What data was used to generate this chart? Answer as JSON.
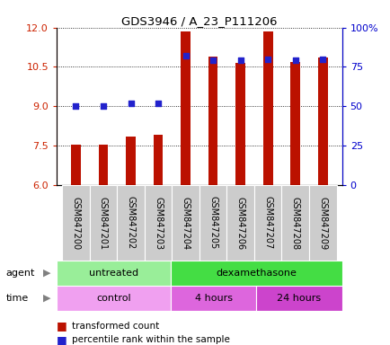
{
  "title": "GDS3946 / A_23_P111206",
  "samples": [
    "GSM847200",
    "GSM847201",
    "GSM847202",
    "GSM847203",
    "GSM847204",
    "GSM847205",
    "GSM847206",
    "GSM847207",
    "GSM847208",
    "GSM847209"
  ],
  "transformed_count": [
    7.55,
    7.55,
    7.85,
    7.9,
    11.85,
    10.9,
    10.65,
    11.85,
    10.7,
    10.85
  ],
  "percentile_rank": [
    50,
    50,
    52,
    52,
    82,
    79,
    79,
    80,
    79,
    80
  ],
  "ylim_left": [
    6,
    12
  ],
  "ylim_right": [
    0,
    100
  ],
  "yticks_left": [
    6,
    7.5,
    9,
    10.5,
    12
  ],
  "yticks_right": [
    0,
    25,
    50,
    75,
    100
  ],
  "bar_color": "#bb1100",
  "dot_color": "#2222cc",
  "agent_groups": [
    {
      "label": "untreated",
      "start": 0,
      "end": 4,
      "color": "#99ee99"
    },
    {
      "label": "dexamethasone",
      "start": 4,
      "end": 10,
      "color": "#44dd44"
    }
  ],
  "time_groups": [
    {
      "label": "control",
      "start": 0,
      "end": 4,
      "color": "#f0a0f0"
    },
    {
      "label": "4 hours",
      "start": 4,
      "end": 7,
      "color": "#dd66dd"
    },
    {
      "label": "24 hours",
      "start": 7,
      "end": 10,
      "color": "#cc44cc"
    }
  ],
  "bar_width": 0.35,
  "dot_size": 20,
  "base_value": 6,
  "left_tick_color": "#cc2200",
  "right_tick_color": "#0000cc",
  "bg_color": "#ffffff"
}
